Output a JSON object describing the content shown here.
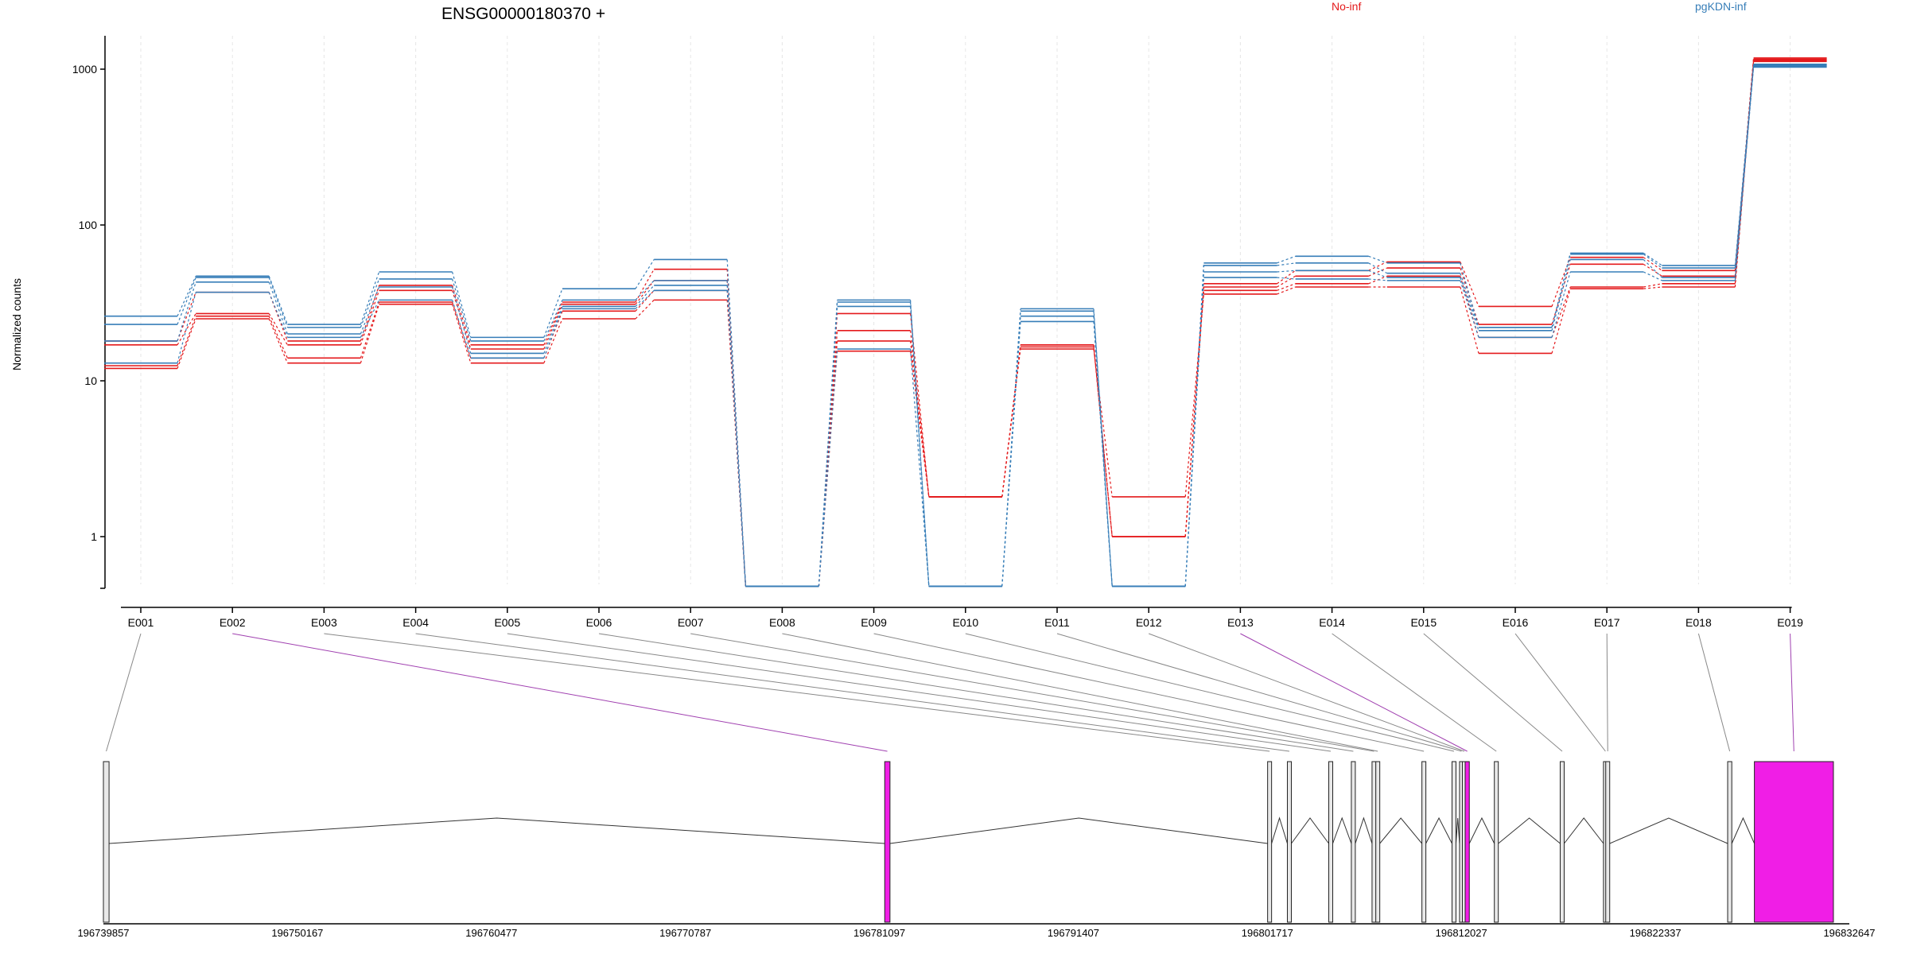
{
  "chart_data": {
    "type": "line",
    "title": "ENSG00000180370 +",
    "ylabel": "Normalized counts",
    "yscale": "log",
    "ylim": [
      0.4,
      1500
    ],
    "yticks": [
      1,
      10,
      100,
      1000
    ],
    "yticklabels": [
      "1",
      "10",
      "100",
      "1000"
    ],
    "legend": [
      {
        "name": "No-inf",
        "color": "#e41a1c"
      },
      {
        "name": "pgKDN-inf",
        "color": "#377eb8"
      }
    ],
    "legend_placement": "top",
    "grid": "vertical dashed at exon centers",
    "categories": [
      "E001",
      "E002",
      "E003",
      "E004",
      "E005",
      "E006",
      "E007",
      "E008",
      "E009",
      "E010",
      "E011",
      "E012",
      "E013",
      "E014",
      "E015",
      "E016",
      "E017",
      "E018",
      "E019"
    ],
    "series": [
      {
        "group": "No-inf",
        "values": [
          12,
          25,
          13,
          31,
          13,
          25,
          33,
          0.48,
          15.5,
          1.8,
          16,
          1.8,
          36,
          40,
          40,
          15,
          39,
          40,
          1120
        ]
      },
      {
        "group": "No-inf",
        "values": [
          12.5,
          26,
          14,
          32,
          14,
          28,
          38,
          0.48,
          18,
          1.8,
          16.5,
          1.0,
          38,
          42,
          47,
          19,
          40,
          42,
          1140
        ]
      },
      {
        "group": "No-inf",
        "values": [
          17,
          27,
          17,
          38,
          16,
          31,
          44,
          0.48,
          21,
          1.8,
          17,
          1.0,
          40,
          47,
          53,
          23,
          56,
          47,
          1160
        ]
      },
      {
        "group": "No-inf",
        "values": [
          18,
          37,
          18,
          41,
          17,
          32,
          52,
          0.48,
          27,
          1.8,
          17,
          1.0,
          42,
          51,
          58,
          30,
          62,
          51,
          1180
        ]
      },
      {
        "group": "pgKDN-inf",
        "values": [
          13,
          37,
          19,
          33,
          14,
          29,
          38,
          0.48,
          16,
          0.48,
          24,
          0.48,
          46,
          45,
          44,
          19,
          50,
          44,
          1030
        ]
      },
      {
        "group": "pgKDN-inf",
        "values": [
          18,
          43,
          20,
          40,
          15,
          30,
          41,
          0.48,
          30,
          0.48,
          26,
          0.48,
          50,
          51,
          46,
          21,
          60,
          46,
          1045
        ]
      },
      {
        "group": "pgKDN-inf",
        "values": [
          23,
          46,
          22,
          45,
          18,
          33,
          44,
          0.48,
          32,
          0.48,
          28,
          0.48,
          55,
          57,
          49,
          22,
          65,
          53,
          1060
        ]
      },
      {
        "group": "pgKDN-inf",
        "values": [
          26,
          47,
          23,
          50,
          19,
          39,
          60,
          0.48,
          33,
          0.48,
          29,
          0.48,
          57,
          63,
          57,
          22,
          66,
          55,
          1075
        ]
      }
    ],
    "gene_model": {
      "coord_ticks": [
        "196739857",
        "196750167",
        "196760477",
        "196770787",
        "196781097",
        "196791407",
        "196801717",
        "196812027",
        "196822337",
        "196832647"
      ],
      "start": 196739857,
      "end": 196832647,
      "exons": [
        {
          "id": "E001",
          "start": 196739857,
          "end": 196740157,
          "highlight": false
        },
        {
          "id": "E002",
          "start": 196781380,
          "end": 196781660,
          "highlight": true
        },
        {
          "id": "E003",
          "start": 196801730,
          "end": 196801850,
          "highlight": false
        },
        {
          "id": "E004",
          "start": 196802780,
          "end": 196802900,
          "highlight": false
        },
        {
          "id": "E005",
          "start": 196804980,
          "end": 196805080,
          "highlight": false
        },
        {
          "id": "E006",
          "start": 196806180,
          "end": 196806280,
          "highlight": false
        },
        {
          "id": "E007",
          "start": 196807280,
          "end": 196807380,
          "highlight": false
        },
        {
          "id": "E008",
          "start": 196807480,
          "end": 196807580,
          "highlight": false
        },
        {
          "id": "E009",
          "start": 196809930,
          "end": 196810030,
          "highlight": false
        },
        {
          "id": "E010",
          "start": 196811530,
          "end": 196811630,
          "highlight": false
        },
        {
          "id": "E011",
          "start": 196811930,
          "end": 196812030,
          "highlight": false
        },
        {
          "id": "E012",
          "start": 196812080,
          "end": 196812180,
          "highlight": false
        },
        {
          "id": "E013",
          "start": 196812230,
          "end": 196812450,
          "highlight": true
        },
        {
          "id": "E014",
          "start": 196813780,
          "end": 196813900,
          "highlight": false
        },
        {
          "id": "E015",
          "start": 196817280,
          "end": 196817400,
          "highlight": false
        },
        {
          "id": "E016",
          "start": 196819580,
          "end": 196819700,
          "highlight": false
        },
        {
          "id": "E017",
          "start": 196819700,
          "end": 196819820,
          "highlight": false
        },
        {
          "id": "E018",
          "start": 196826180,
          "end": 196826400,
          "highlight": false
        },
        {
          "id": "E019",
          "start": 196827600,
          "end": 196831800,
          "highlight": true
        }
      ]
    }
  },
  "colors": {
    "no_inf": "#e41a1c",
    "pgkdn_inf": "#377eb8",
    "highlight": "#f01ee6",
    "highlight_line": "#a040b0",
    "connector": "#888888"
  }
}
